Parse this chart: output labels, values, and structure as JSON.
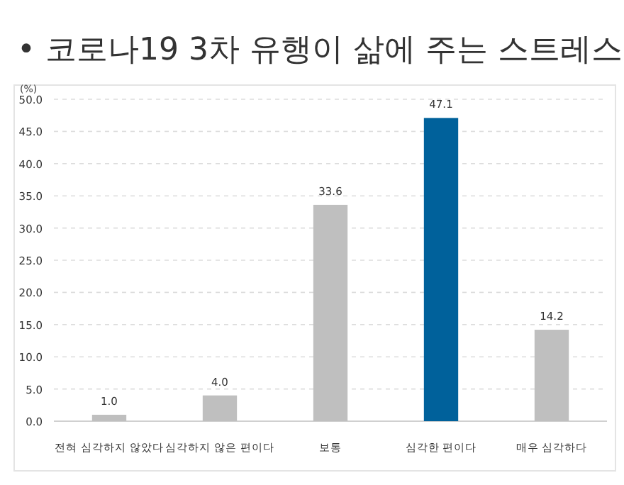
{
  "chart_data": {
    "type": "bar",
    "title": "• 코로나19 3차 유행이 삶에 주는 스트레스",
    "ylabel": "(%)",
    "categories": [
      "전혀 심각하지 않았다",
      "심각하지 않은 편이다",
      "보통",
      "심각한 편이다",
      "매우 심각하다"
    ],
    "values": [
      1.0,
      4.0,
      33.6,
      47.1,
      14.2
    ],
    "value_labels": [
      "1.0",
      "4.0",
      "33.6",
      "47.1",
      "14.2"
    ],
    "colors": [
      "#bfbfbf",
      "#bfbfbf",
      "#bfbfbf",
      "#00619b",
      "#bfbfbf"
    ],
    "ylim": [
      0,
      50
    ],
    "yticks": [
      {
        "value": 0,
        "label": "0.0"
      },
      {
        "value": 5,
        "label": "5.0"
      },
      {
        "value": 10,
        "label": "10.0"
      },
      {
        "value": 15,
        "label": "15.0"
      },
      {
        "value": 20,
        "label": "20.0"
      },
      {
        "value": 25,
        "label": "25.0"
      },
      {
        "value": 30,
        "label": "30.0"
      },
      {
        "value": 35,
        "label": "35.0"
      },
      {
        "value": 40,
        "label": "40.0"
      },
      {
        "value": 45,
        "label": "45.0"
      },
      {
        "value": 50,
        "label": "50.0"
      }
    ],
    "grid": "y"
  }
}
